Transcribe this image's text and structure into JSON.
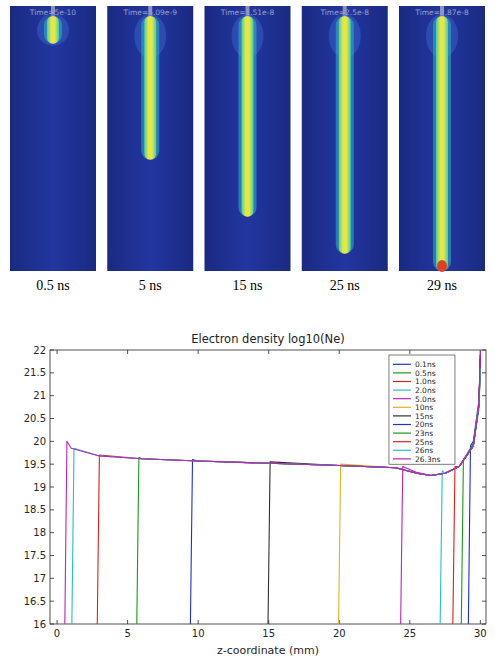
{
  "snapshots": [
    {
      "title": "Time=5e-10",
      "caption": "0.5 ns",
      "front_fraction": 0.08
    },
    {
      "title": "Time=5.09e-9",
      "caption": "5 ns",
      "front_fraction": 0.55
    },
    {
      "title": "Time=1.51e-8",
      "caption": "15 ns",
      "front_fraction": 0.78
    },
    {
      "title": "Time=2.5e-8",
      "caption": "25 ns",
      "front_fraction": 0.93
    },
    {
      "title": "Time=2.87e-8",
      "caption": "29 ns",
      "front_fraction": 1.0
    }
  ],
  "chart_data": {
    "type": "line",
    "title": "Electron density log10(Ne)",
    "x_label": "z-coordinate (mm)",
    "xlim": [
      -0.5,
      30.4
    ],
    "ylim": [
      16,
      22
    ],
    "xticks": [
      0,
      5,
      10,
      15,
      20,
      25,
      30
    ],
    "yticks": [
      16,
      16.5,
      17,
      17.5,
      18,
      18.5,
      19,
      19.5,
      20,
      20.5,
      21,
      21.5,
      22
    ],
    "legend": "upper right",
    "series": [
      {
        "name": "0.1ns",
        "color": "#1f2fd0",
        "x": [
          29.15,
          29.3,
          29.5,
          29.9,
          30
        ],
        "values": [
          16,
          19.9,
          20.0,
          20.9,
          21.9
        ]
      },
      {
        "name": "0.5ns",
        "color": "#1a9a1a",
        "x": [
          28.65,
          28.8,
          29.5,
          29.9,
          30
        ],
        "values": [
          16,
          19.6,
          19.95,
          20.8,
          21.8
        ]
      },
      {
        "name": "1.0ns",
        "color": "#e0201a",
        "x": [
          28.05,
          28.2,
          28.5,
          29.5,
          29.9,
          30
        ],
        "values": [
          16,
          19.45,
          19.45,
          19.9,
          20.8,
          21.9
        ]
      },
      {
        "name": "2.0ns",
        "color": "#20c0d0",
        "x": [
          27.15,
          27.3,
          27.5,
          28.5,
          29.5,
          29.9,
          30
        ],
        "values": [
          16,
          19.35,
          19.3,
          19.45,
          19.9,
          20.7,
          21.6
        ]
      },
      {
        "name": "5.0ns",
        "color": "#c020c0",
        "x": [
          24.35,
          24.5,
          25.5,
          26.5,
          27.5,
          28.5,
          29.5,
          29.9,
          30
        ],
        "values": [
          16,
          19.45,
          19.32,
          19.25,
          19.3,
          19.45,
          19.9,
          20.8,
          21.7
        ]
      },
      {
        "name": "10ns",
        "color": "#e8b020",
        "x": [
          19.95,
          20.1,
          24,
          25.5,
          26.5,
          27.5,
          28.5,
          29.5,
          29.9,
          30
        ],
        "values": [
          16,
          19.5,
          19.42,
          19.3,
          19.25,
          19.3,
          19.45,
          19.9,
          20.8,
          21.5
        ]
      },
      {
        "name": "15ns",
        "color": "#303030",
        "x": [
          14.95,
          15.1,
          20,
          24,
          25.5,
          26.5,
          27.5,
          28.5,
          29.5,
          29.9,
          30
        ],
        "values": [
          16,
          19.55,
          19.47,
          19.42,
          19.3,
          19.25,
          19.3,
          19.45,
          19.9,
          20.8,
          21.8
        ]
      },
      {
        "name": "20ns",
        "color": "#1f2fd0",
        "x": [
          9.45,
          9.6,
          10,
          15,
          20,
          24,
          25.5,
          26.5,
          27.5,
          28.5,
          29.5,
          29.9,
          30
        ],
        "values": [
          16,
          19.6,
          19.57,
          19.52,
          19.47,
          19.42,
          19.3,
          19.25,
          19.3,
          19.45,
          19.9,
          20.8,
          21.9
        ]
      },
      {
        "name": "23ns",
        "color": "#1a9a1a",
        "x": [
          5.65,
          5.8,
          6,
          10,
          15,
          20,
          24,
          25.5,
          26.5,
          27.5,
          28.5,
          29.5,
          29.9,
          30
        ],
        "values": [
          16,
          19.65,
          19.62,
          19.57,
          19.52,
          19.47,
          19.42,
          19.3,
          19.25,
          19.3,
          19.45,
          19.9,
          20.8,
          21.7
        ]
      },
      {
        "name": "25ns",
        "color": "#e0201a",
        "x": [
          2.85,
          3.0,
          6,
          10,
          15,
          20,
          24,
          25.5,
          26.5,
          27.5,
          28.5,
          29.5,
          29.9,
          30
        ],
        "values": [
          16,
          19.7,
          19.62,
          19.57,
          19.52,
          19.47,
          19.42,
          19.3,
          19.25,
          19.3,
          19.45,
          19.9,
          20.8,
          21.8
        ]
      },
      {
        "name": "26ns",
        "color": "#20c0d0",
        "x": [
          1.05,
          1.2,
          3,
          6,
          10,
          15,
          20,
          24,
          25.5,
          26.5,
          27.5,
          28.5,
          29.5,
          29.9,
          30
        ],
        "values": [
          16,
          19.85,
          19.68,
          19.62,
          19.57,
          19.52,
          19.47,
          19.42,
          19.3,
          19.25,
          19.3,
          19.45,
          19.9,
          20.8,
          21.6
        ]
      },
      {
        "name": "26.3ns",
        "color": "#c020c0",
        "x": [
          0.55,
          0.7,
          1,
          3,
          6,
          10,
          15,
          20,
          24,
          25.5,
          26.5,
          27.5,
          28.5,
          29.5,
          29.9,
          30
        ],
        "values": [
          16,
          20.0,
          19.85,
          19.68,
          19.62,
          19.57,
          19.52,
          19.47,
          19.42,
          19.3,
          19.25,
          19.3,
          19.45,
          19.9,
          20.8,
          22.0
        ]
      }
    ]
  }
}
